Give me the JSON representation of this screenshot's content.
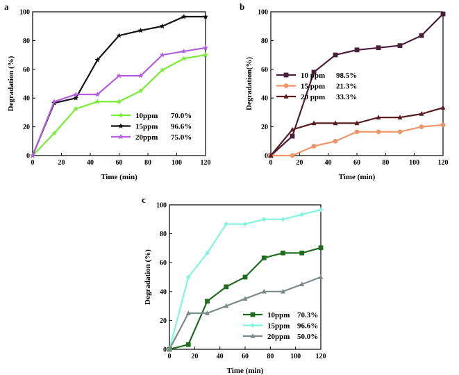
{
  "chart_data": [
    {
      "type": "line",
      "panel_label": "a",
      "xlabel": "Time (min)",
      "ylabel": "Degradation (%)",
      "xlim": [
        0,
        120
      ],
      "ylim": [
        0,
        100
      ],
      "xticks": [
        0,
        20,
        40,
        60,
        80,
        100,
        120
      ],
      "yticks": [
        0,
        20,
        40,
        60,
        80,
        100
      ],
      "legend_position": "bottom-right",
      "series": [
        {
          "name": "10ppm",
          "label": "70.0%",
          "color": "#77ee33",
          "marker": "star",
          "x": [
            0,
            15,
            30,
            45,
            60,
            75,
            90,
            105,
            120
          ],
          "y": [
            0,
            15.5,
            32.5,
            37.5,
            37.5,
            45,
            59.5,
            67.5,
            70
          ]
        },
        {
          "name": "15ppm",
          "label": "96.6%",
          "color": "#111111",
          "marker": "star",
          "x": [
            0,
            15,
            30,
            45,
            60,
            75,
            90,
            105,
            120
          ],
          "y": [
            0,
            36.5,
            40,
            66.5,
            83.5,
            87,
            90,
            96.6,
            96.6
          ]
        },
        {
          "name": "20ppm",
          "label": "75.0%",
          "color": "#b55ce0",
          "marker": "star",
          "x": [
            0,
            15,
            30,
            45,
            60,
            75,
            90,
            105,
            120
          ],
          "y": [
            0,
            37.5,
            42.5,
            42.5,
            55.5,
            55.5,
            70,
            72.5,
            75
          ]
        }
      ]
    },
    {
      "type": "line",
      "panel_label": "b",
      "xlabel": "Time (min)",
      "ylabel": "Degradation(%)",
      "xlim": [
        0,
        120
      ],
      "ylim": [
        0,
        100
      ],
      "xticks": [
        0,
        20,
        40,
        60,
        80,
        100,
        120
      ],
      "yticks": [
        0,
        20,
        40,
        60,
        80,
        100
      ],
      "legend_position": "center-left",
      "series": [
        {
          "name": "10 ppm",
          "label": "98.5%",
          "color": "#4a1f3c",
          "marker": "square",
          "x": [
            0,
            15,
            30,
            45,
            60,
            75,
            90,
            105,
            120
          ],
          "y": [
            0,
            13.5,
            58,
            70,
            73.5,
            75,
            76.5,
            83.5,
            98.5
          ]
        },
        {
          "name": "15 ppm",
          "label": "21.3%",
          "color": "#f0956a",
          "marker": "circle",
          "x": [
            0,
            15,
            30,
            45,
            60,
            75,
            90,
            105,
            120
          ],
          "y": [
            0,
            0,
            6.5,
            10,
            16.5,
            16.5,
            16.5,
            20,
            21.3
          ]
        },
        {
          "name": "20 ppm",
          "label": "33.3%",
          "color": "#5a1e1e",
          "marker": "triangle",
          "x": [
            0,
            15,
            30,
            45,
            60,
            75,
            90,
            105,
            120
          ],
          "y": [
            0,
            18,
            22.5,
            22.5,
            22.5,
            26.5,
            26.5,
            29,
            33.3
          ]
        }
      ]
    },
    {
      "type": "line",
      "panel_label": "c",
      "xlabel": "Time (min)",
      "ylabel": "Degradation (%)",
      "xlim": [
        0,
        120
      ],
      "ylim": [
        0,
        100
      ],
      "xticks": [
        0,
        20,
        40,
        60,
        80,
        100,
        120
      ],
      "yticks": [
        0,
        20,
        40,
        60,
        80,
        100
      ],
      "legend_position": "bottom-right",
      "series": [
        {
          "name": "10ppm",
          "label": "70.3%",
          "color": "#1f6b1f",
          "marker": "square",
          "x": [
            0,
            15,
            30,
            45,
            60,
            75,
            90,
            105,
            120
          ],
          "y": [
            0,
            3.3,
            33.3,
            43.3,
            50,
            63.3,
            66.7,
            66.7,
            70.3
          ]
        },
        {
          "name": "15ppm",
          "label": "96.6%",
          "color": "#80f5e0",
          "marker": "diamond",
          "x": [
            0,
            15,
            30,
            45,
            60,
            75,
            90,
            105,
            120
          ],
          "y": [
            0,
            50,
            66.7,
            86.7,
            86.7,
            90,
            90,
            93.3,
            96.6
          ]
        },
        {
          "name": "20ppm",
          "label": "50.0%",
          "color": "#7a8a8a",
          "marker": "triangle",
          "x": [
            0,
            15,
            30,
            45,
            60,
            75,
            90,
            105,
            120
          ],
          "y": [
            0,
            25,
            25,
            30,
            35,
            40,
            40,
            45,
            50
          ]
        }
      ]
    }
  ]
}
